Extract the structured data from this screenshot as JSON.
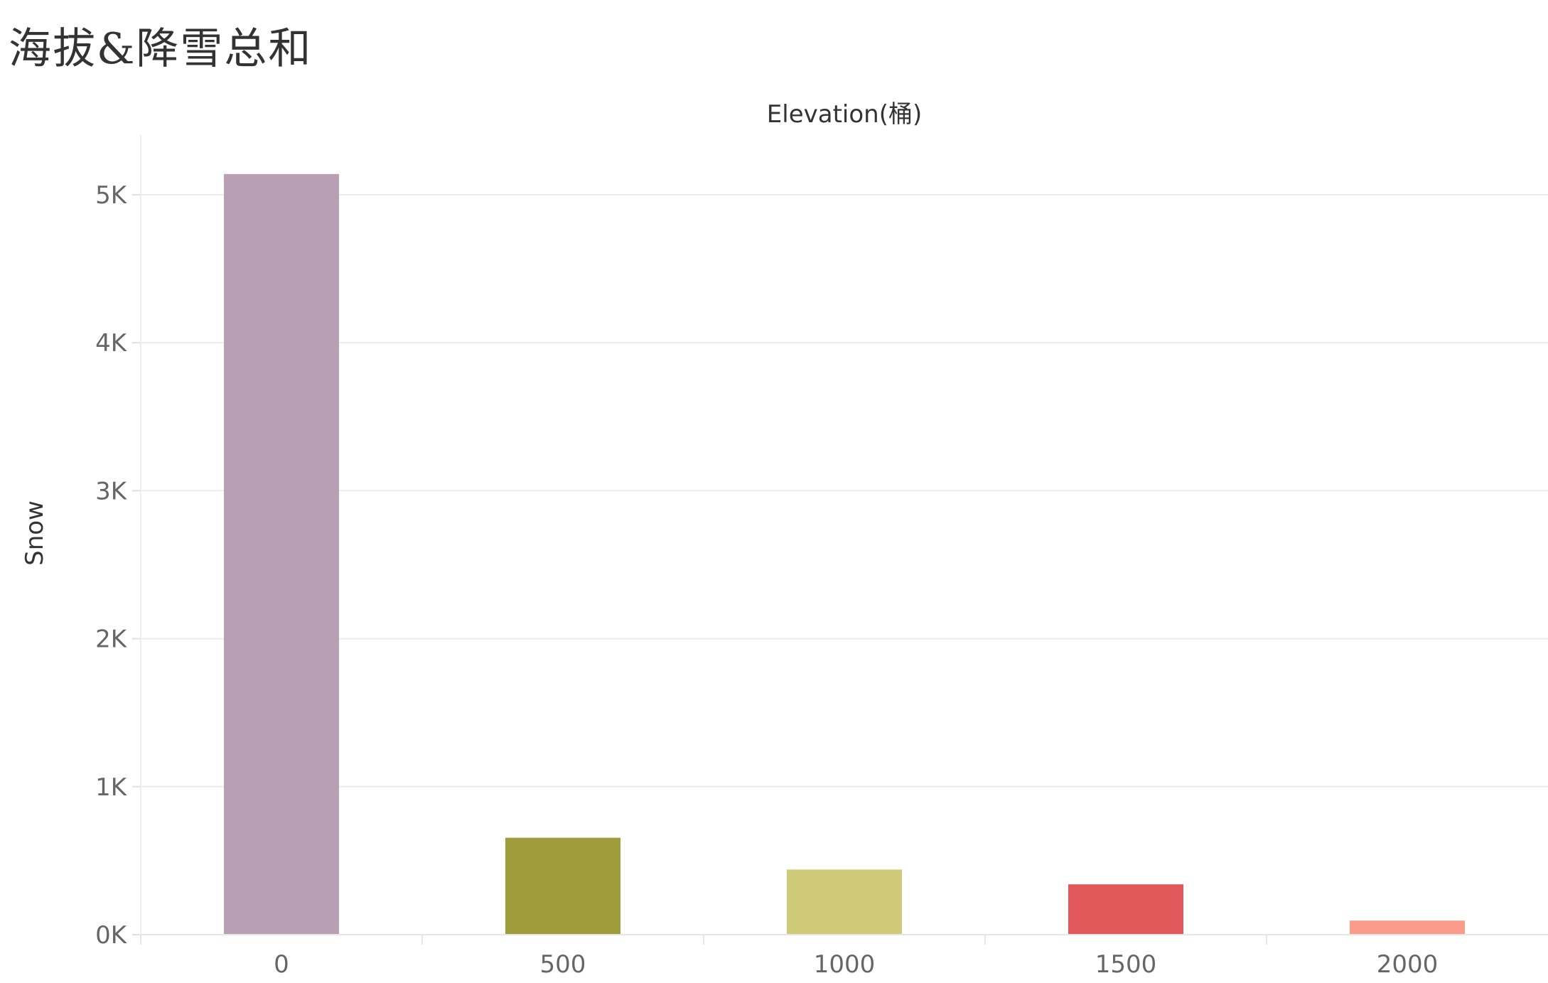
{
  "page": {
    "title": "海拔&降雪总和"
  },
  "chart_data": {
    "type": "bar",
    "xlabel": "Elevation(桶)",
    "ylabel": "Snow",
    "categories": [
      "0",
      "500",
      "1000",
      "1500",
      "2000"
    ],
    "values": [
      5140,
      655,
      440,
      340,
      95
    ],
    "colors": [
      "#b89fb4",
      "#9f9c3e",
      "#cfca77",
      "#e2575a",
      "#fc9a8c"
    ],
    "y_ticks": [
      {
        "value": 0,
        "label": "0K"
      },
      {
        "value": 1000,
        "label": "1K"
      },
      {
        "value": 2000,
        "label": "2K"
      },
      {
        "value": 3000,
        "label": "3K"
      },
      {
        "value": 4000,
        "label": "4K"
      },
      {
        "value": 5000,
        "label": "5K"
      }
    ],
    "ylim": [
      0,
      5400
    ],
    "grid": true,
    "legend": "none"
  }
}
